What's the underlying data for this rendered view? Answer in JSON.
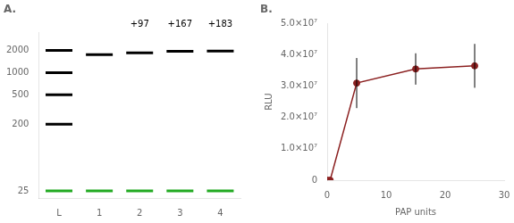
{
  "chart_data": [
    {
      "type": "scatter",
      "title": "A.",
      "categories": [
        "L",
        "1",
        "2",
        "3",
        "4"
      ],
      "series": [
        {
          "color": "#000000",
          "marker": "line",
          "x": [
            "L",
            "L",
            "L",
            "L",
            "1",
            "2",
            "3",
            "4"
          ],
          "values": [
            2000,
            1000,
            500,
            200,
            1750,
            1850,
            1950,
            1960
          ]
        },
        {
          "color": "#22aa22",
          "marker": "line",
          "x": [
            "L",
            "1",
            "2",
            "3",
            "4"
          ],
          "values": [
            25,
            25,
            25,
            25,
            25
          ]
        }
      ],
      "log": "y",
      "ylim": [
        20,
        3500
      ],
      "yticks": [
        2000,
        1000,
        500,
        200,
        25
      ],
      "grid": false,
      "annotations": [
        {
          "category": "2",
          "text": "+97"
        },
        {
          "category": "3",
          "text": "+167"
        },
        {
          "category": "4",
          "text": "+183"
        }
      ]
    },
    {
      "type": "line",
      "title": "B.",
      "x": [
        0,
        0.5,
        5,
        15,
        25
      ],
      "series": [
        {
          "color": "#8b2020",
          "marker": "circle",
          "line_style": "solid",
          "values": [
            0,
            0,
            31000000,
            35500000,
            36500000
          ],
          "errors": [
            0,
            0,
            8000000,
            5000000,
            7000000
          ]
        }
      ],
      "xlabel": "PAP units",
      "ylabel": "RLU",
      "xlim": [
        0,
        30
      ],
      "ylim": [
        0,
        50000000.0
      ],
      "xticks": [
        0,
        10,
        20,
        30
      ],
      "yticks": [
        0,
        {
          "value": 10000000.0,
          "label": "1.0×10⁷"
        },
        {
          "value": 20000000.0,
          "label": "2.0×10⁷"
        },
        {
          "value": 30000000.0,
          "label": "3.0×10⁷"
        },
        {
          "value": 40000000.0,
          "label": "4.0×10⁷"
        },
        {
          "value": 50000000.0,
          "label": "5.0×10⁷"
        }
      ],
      "grid": false
    }
  ]
}
